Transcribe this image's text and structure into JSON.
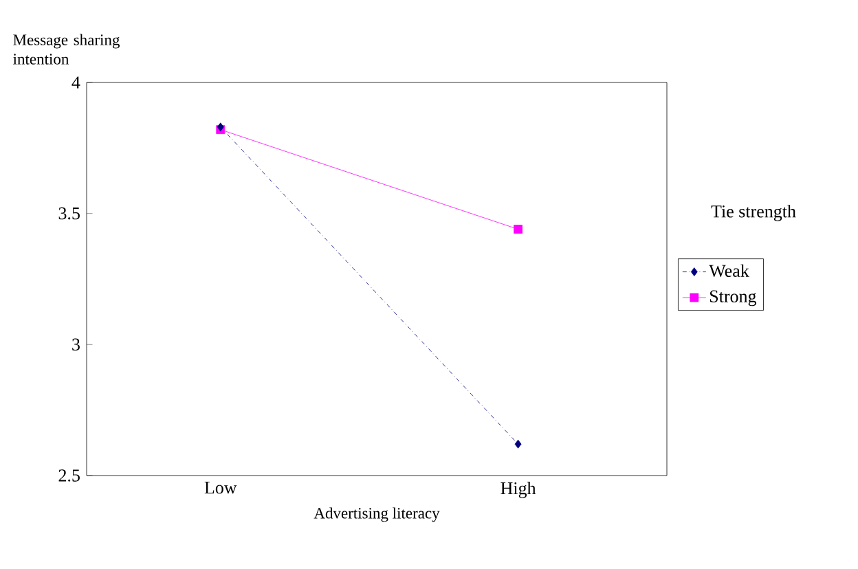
{
  "chart_data": {
    "type": "line",
    "ylabel": "Message sharing intention",
    "xlabel": "Advertising literacy",
    "legend_title": "Tie strength",
    "categories": [
      "Low",
      "High"
    ],
    "ylim": [
      2.5,
      4
    ],
    "yticks": [
      2.5,
      3,
      3.5,
      4
    ],
    "legend": "right",
    "grid": false,
    "series": [
      {
        "name": "Weak",
        "color": "#000080",
        "values": [
          3.83,
          2.62
        ],
        "marker": "diamond",
        "line_style": "dashdotted"
      },
      {
        "name": "Strong",
        "color": "#ff00ff",
        "values": [
          3.82,
          3.44
        ],
        "marker": "square",
        "line_style": "solid"
      }
    ]
  }
}
